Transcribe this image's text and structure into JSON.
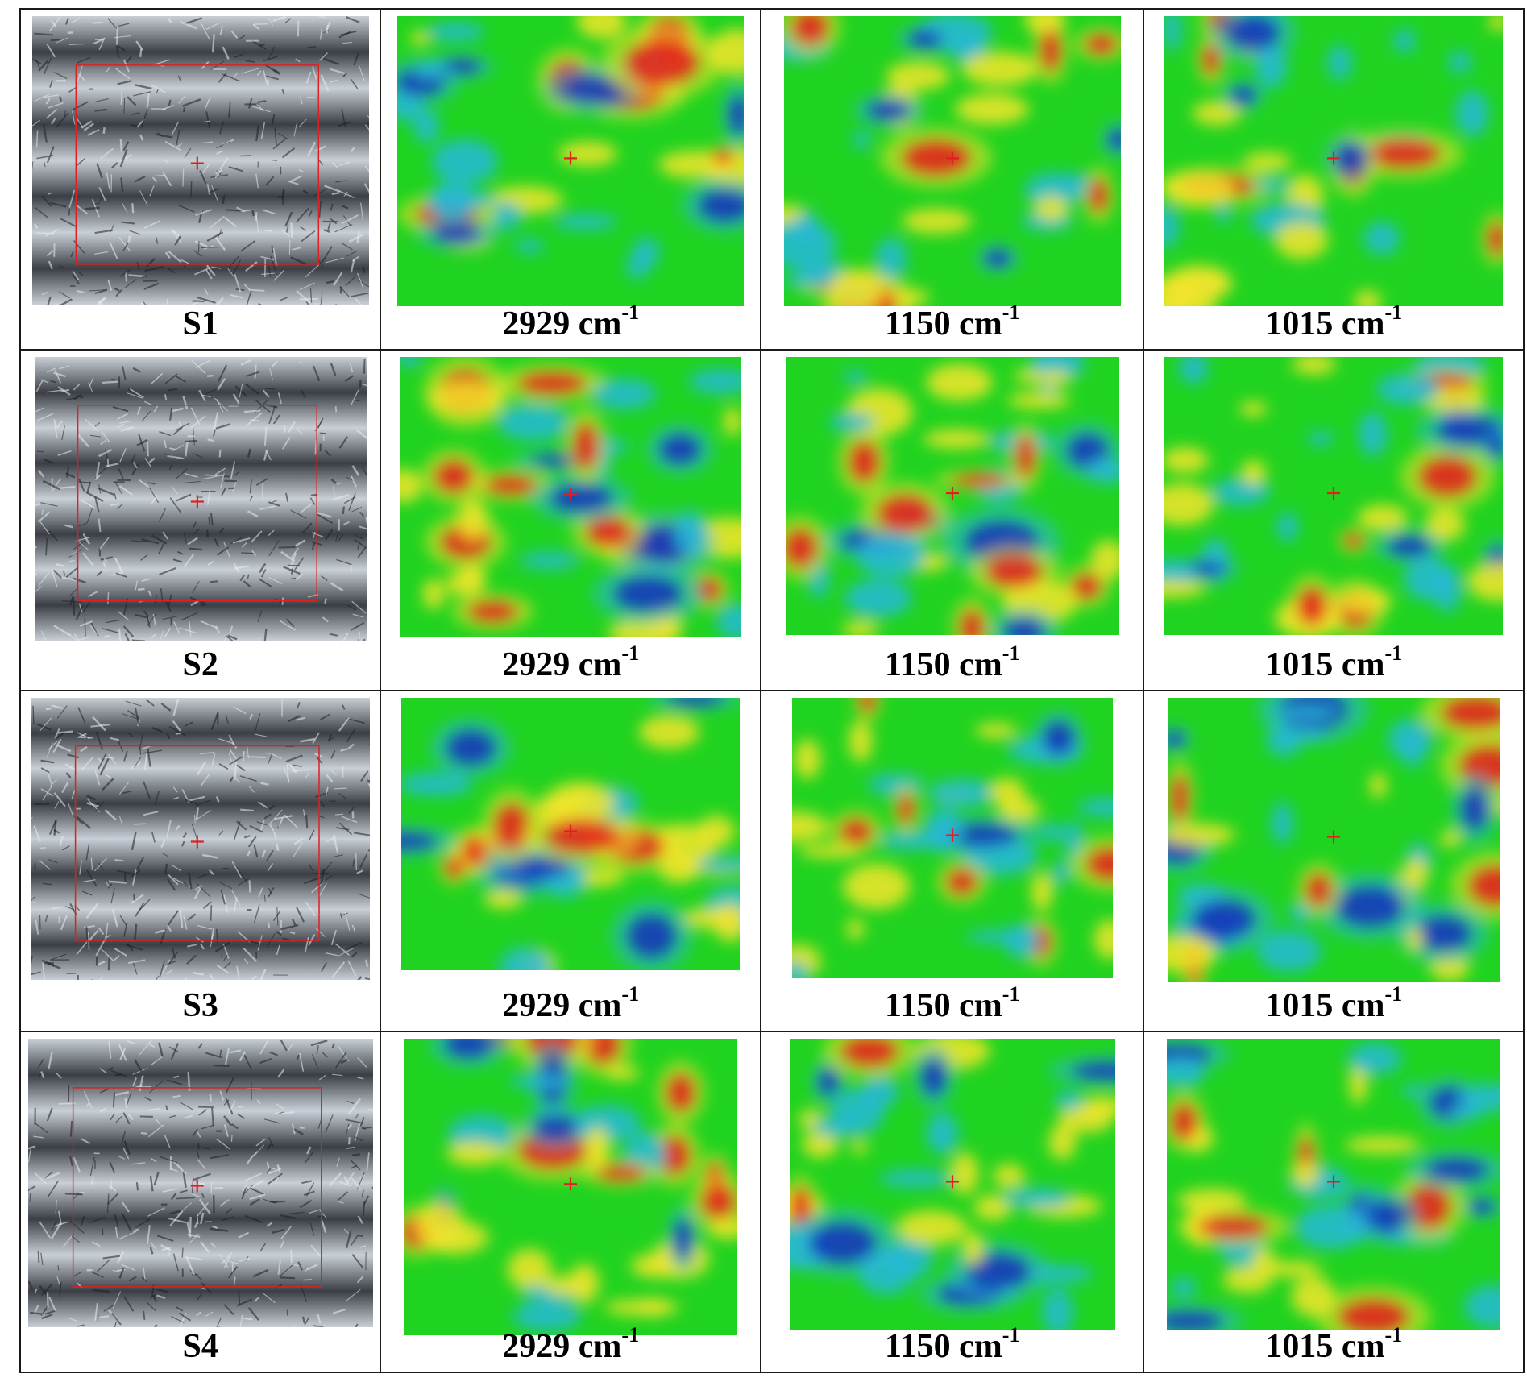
{
  "rows": [
    {
      "sample": "S1",
      "maps": [
        {
          "wavenumber": "2929",
          "unit": "cm",
          "exp": "-1"
        },
        {
          "wavenumber": "1150",
          "unit": "cm",
          "exp": "-1"
        },
        {
          "wavenumber": "1015",
          "unit": "cm",
          "exp": "-1"
        }
      ]
    },
    {
      "sample": "S2",
      "maps": [
        {
          "wavenumber": "2929",
          "unit": "cm",
          "exp": "-1"
        },
        {
          "wavenumber": "1150",
          "unit": "cm",
          "exp": "-1"
        },
        {
          "wavenumber": "1015",
          "unit": "cm",
          "exp": "-1"
        }
      ]
    },
    {
      "sample": "S3",
      "maps": [
        {
          "wavenumber": "2929",
          "unit": "cm",
          "exp": "-1"
        },
        {
          "wavenumber": "1150",
          "unit": "cm",
          "exp": "-1"
        },
        {
          "wavenumber": "1015",
          "unit": "cm",
          "exp": "-1"
        }
      ]
    },
    {
      "sample": "S4",
      "maps": [
        {
          "wavenumber": "2929",
          "unit": "cm",
          "exp": "-1"
        },
        {
          "wavenumber": "1150",
          "unit": "cm",
          "exp": "-1"
        },
        {
          "wavenumber": "1015",
          "unit": "cm",
          "exp": "-1"
        }
      ]
    }
  ],
  "colors": {
    "map_background": "#21d321",
    "high": "#e41a1a",
    "mid_high": "#f5e52a",
    "mid_low": "#27b8d9",
    "low": "#1530b8",
    "marker": "#e02020",
    "photo_dark": "#3b3f45",
    "photo_light": "#c9cfd6"
  }
}
